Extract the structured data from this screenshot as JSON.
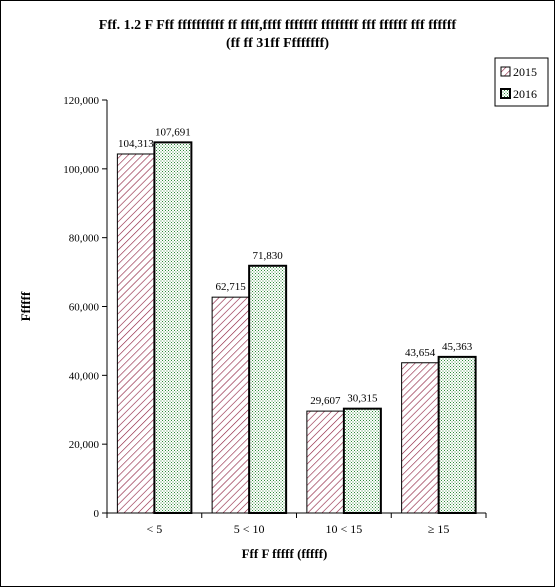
{
  "chart_data": {
    "type": "bar",
    "title": "Fff. 1.2 F Fff ffffffffff ff ffff,ffff fffffff ffffffff fff ffffff fff ffffff",
    "subtitle": "(ff ff 31ff  Ffffffff)",
    "xlabel": "Fff F fffff (fffff)",
    "ylabel": "Ffffff",
    "categories": [
      "< 5",
      "5 < 10",
      "10 < 15",
      "≥ 15"
    ],
    "ylim": [
      0,
      120000
    ],
    "yticks": [
      "0",
      "20,000",
      "40,000",
      "60,000",
      "80,000",
      "100,000",
      "120,000"
    ],
    "ytick_values": [
      0,
      20000,
      40000,
      60000,
      80000,
      100000,
      120000
    ],
    "series": [
      {
        "name": "2015",
        "values": [
          104313,
          62715,
          29607,
          43654
        ],
        "labels": [
          "104,313",
          "62,715",
          "29,607",
          "43,654"
        ],
        "color": "#8b1a3a",
        "pattern": "diagonal-hatch"
      },
      {
        "name": "2016",
        "values": [
          107691,
          71830,
          30315,
          45363
        ],
        "labels": [
          "107,691",
          "71,830",
          "30,315",
          "45,363"
        ],
        "color": "#2e8b3a",
        "pattern": "dots"
      }
    ],
    "legend_position": "top-right",
    "grid": false
  }
}
